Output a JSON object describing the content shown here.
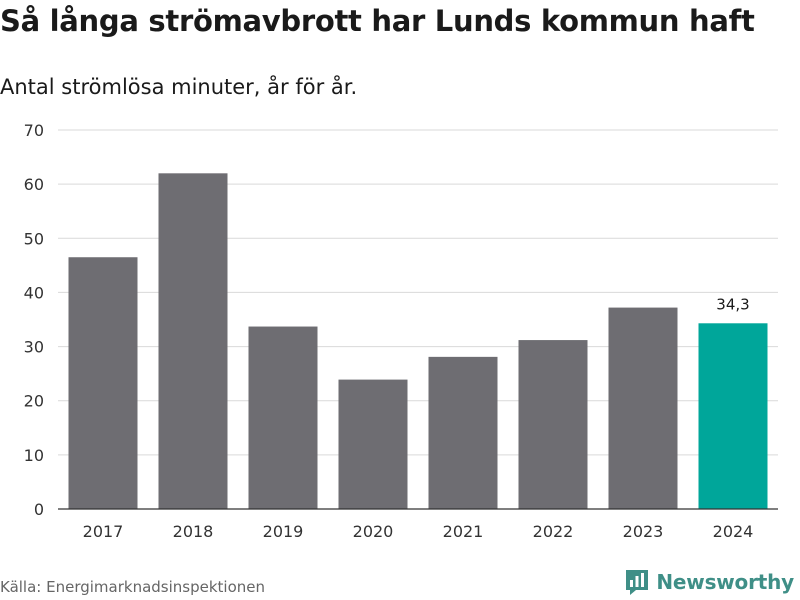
{
  "header": {
    "title": "Så långa strömavbrott har Lunds kommun haft",
    "subtitle": "Antal strömlösa minuter, år för år."
  },
  "footer": {
    "source": "Källa: Energimarknadsinspektionen",
    "brand": "Newsworthy",
    "brand_icon": "newsworthy-logo-icon"
  },
  "colors": {
    "bar_default": "#6e6d72",
    "bar_highlight": "#00a69a",
    "grid": "#d9d9d9",
    "axis": "#333333",
    "brand": "#3f8f87"
  },
  "chart_data": {
    "type": "bar",
    "title": "Så långa strömavbrott har Lunds kommun haft",
    "subtitle": "Antal strömlösa minuter, år för år.",
    "xlabel": "",
    "ylabel": "",
    "categories": [
      "2017",
      "2018",
      "2019",
      "2020",
      "2021",
      "2022",
      "2023",
      "2024"
    ],
    "values": [
      46.5,
      62.0,
      33.7,
      23.9,
      28.1,
      31.2,
      37.2,
      34.3
    ],
    "highlight_index": 7,
    "data_labels": [
      {
        "index": 7,
        "text": "34,3"
      }
    ],
    "ylim": [
      0,
      70
    ],
    "yticks": [
      0,
      10,
      20,
      30,
      40,
      50,
      60,
      70
    ],
    "grid": true,
    "legend": "none"
  }
}
